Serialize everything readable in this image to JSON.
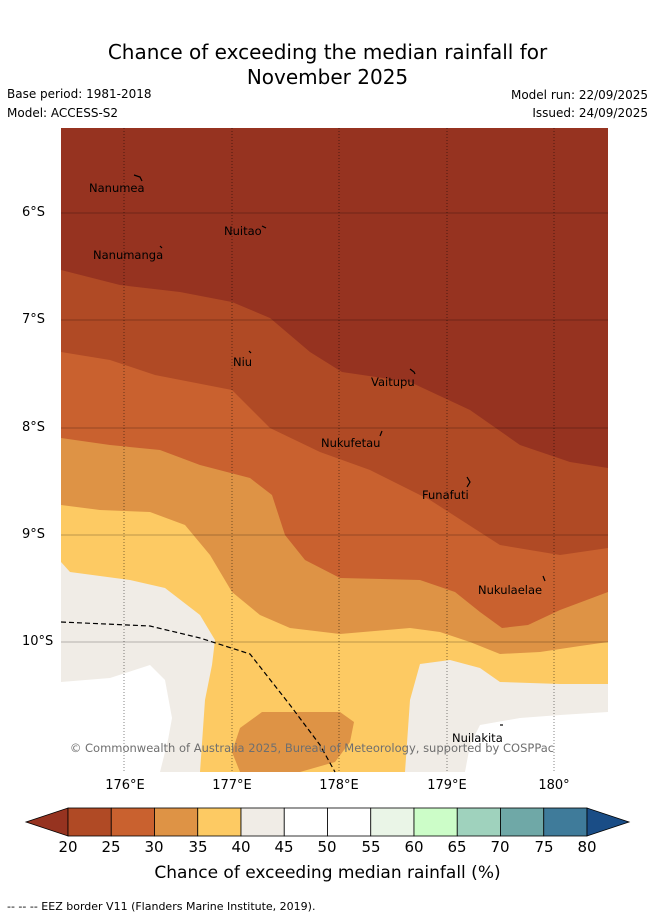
{
  "header": {
    "title_line1": "Chance of exceeding the median rainfall for",
    "title_line2": "November 2025",
    "base_period": "Base period: 1981-2018",
    "model": "Model: ACCESS-S2",
    "model_run": "Model run: 22/09/2025",
    "issued": "Issued: 24/09/2025"
  },
  "map": {
    "y_ticks": [
      "6°S",
      "7°S",
      "8°S",
      "9°S",
      "10°S"
    ],
    "x_ticks": [
      "176°E",
      "177°E",
      "178°E",
      "179°E",
      "180°"
    ],
    "islands": [
      {
        "name": "Nanumea"
      },
      {
        "name": "Nuitao"
      },
      {
        "name": "Nanumanga"
      },
      {
        "name": "Niu"
      },
      {
        "name": "Vaitupu"
      },
      {
        "name": "Nukufetau"
      },
      {
        "name": "Funafuti"
      },
      {
        "name": "Nukulaelae"
      },
      {
        "name": "Nuilakita"
      }
    ],
    "copyright": "© Commonwealth of Australia 2025, Bureau of Meteorology, supported by COSPPac"
  },
  "colorbar": {
    "labels": [
      "20",
      "25",
      "30",
      "35",
      "40",
      "45",
      "50",
      "55",
      "60",
      "65",
      "70",
      "75",
      "80"
    ],
    "colors": [
      "#b04a25",
      "#c9612f",
      "#de9345",
      "#fdca63",
      "#f0ece6",
      "#ffffff",
      "#ffffff",
      "#eaf5e7",
      "#ccfdc8",
      "#9fd2bd",
      "#6fa8a7",
      "#3f7b9a"
    ],
    "under_color": "#963320",
    "over_color": "#1a4d86",
    "title": "Chance of exceeding median rainfall (%)"
  },
  "footnote": "--  --  -- EEZ border V11 (Flanders Marine Institute, 2019)."
}
